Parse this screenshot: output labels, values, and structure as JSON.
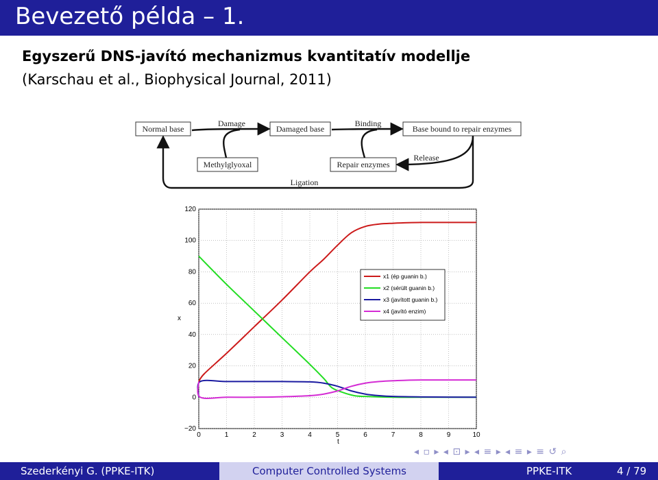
{
  "slide": {
    "title": "Bevezető példa – 1.",
    "subtitle_bold": "Egyszerű DNS-javító mechanizmus kvantitatív modellje",
    "subtitle_ref": "(Karschau et al., Biophysical Journal, 2011)"
  },
  "diagram": {
    "nodes": {
      "normal_base": "Normal base",
      "damaged_base": "Damaged base",
      "base_bound": "Base bound to repair enzymes",
      "methylglyoxal": "Methylglyoxal",
      "repair_enzymes": "Repair enzymes"
    },
    "edge_labels": {
      "damage": "Damage",
      "binding": "Binding",
      "release": "Release",
      "ligation": "Ligation"
    }
  },
  "chart_data": {
    "type": "line",
    "xlabel": "t",
    "ylabel": "x",
    "xlim": [
      0,
      10
    ],
    "ylim": [
      -20,
      120
    ],
    "x_ticks": [
      "0",
      "1",
      "2",
      "3",
      "4",
      "5",
      "6",
      "7",
      "8",
      "9",
      "10"
    ],
    "y_ticks": [
      "−20",
      "0",
      "20",
      "40",
      "60",
      "80",
      "100",
      "120"
    ],
    "grid": true,
    "legend_position": "right",
    "series": [
      {
        "name": "x1 (ép guanin b.)",
        "color": "#cc1a1a",
        "x": [
          0,
          0.2,
          1,
          2,
          3,
          4,
          4.5,
          5,
          5.5,
          6,
          6.5,
          7,
          8,
          9,
          10
        ],
        "y": [
          10,
          15,
          28,
          45,
          62,
          80,
          88,
          97,
          105,
          109,
          110.5,
          111,
          111.5,
          111.5,
          111.5
        ]
      },
      {
        "name": "x2 (sérült guanin b.)",
        "color": "#22dd22",
        "x": [
          0,
          1,
          2,
          3,
          4,
          4.5,
          4.8,
          5.2,
          5.6,
          6,
          7,
          8,
          10
        ],
        "y": [
          90,
          72,
          55,
          38,
          21,
          12,
          6,
          3,
          1,
          0.5,
          0,
          0,
          0
        ]
      },
      {
        "name": "x3 (javított guanin b.)",
        "color": "#1a1aa0",
        "x": [
          0,
          0.05,
          1,
          2,
          3,
          4,
          4.5,
          5,
          5.5,
          6,
          6.5,
          7,
          8,
          10
        ],
        "y": [
          0,
          10,
          10,
          10,
          10,
          9.8,
          9,
          7,
          4,
          2,
          1,
          0.5,
          0.2,
          0
        ]
      },
      {
        "name": "x4 (javító enzim)",
        "color": "#d42bd4",
        "x": [
          0,
          0.05,
          1,
          2,
          3,
          4,
          4.5,
          5,
          5.5,
          6,
          6.5,
          7,
          8,
          10
        ],
        "y": [
          10,
          0,
          0,
          0,
          0.3,
          1,
          2,
          4,
          7,
          9,
          10,
          10.5,
          11,
          11
        ]
      }
    ]
  },
  "nav_symbols": "◂ ▫ ▸ ◂ ⊡ ▸ ◂ ≡ ▸ ◂ ≡ ▸ ≡ ↺ ⌕",
  "footer": {
    "author": "Szederkényi G.  (PPKE-ITK)",
    "course": "Computer Controlled Systems",
    "institute": "PPKE-ITK",
    "page": "4 / 79"
  }
}
